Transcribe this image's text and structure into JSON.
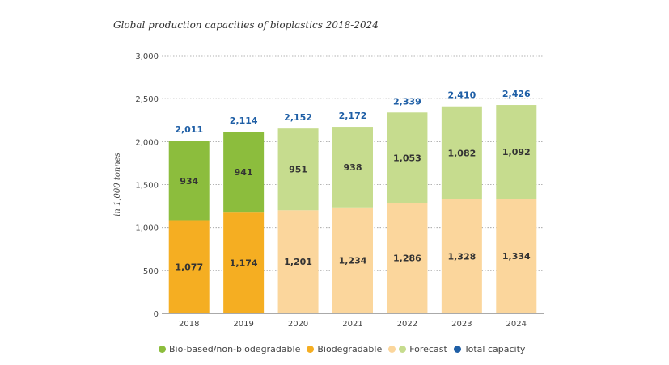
{
  "chart_data": {
    "type": "bar",
    "stacked": true,
    "title": "Global production capacities of bioplastics 2018-2024",
    "ylabel": "in 1,000 tonnes",
    "xlabel": "",
    "ylim": [
      0,
      3000
    ],
    "yticks": [
      0,
      500,
      1000,
      1500,
      2000,
      2500,
      3000
    ],
    "ytick_labels": [
      "0",
      "500",
      "1,000",
      "1,500",
      "2,000",
      "2,500",
      "3,000"
    ],
    "grid": true,
    "categories": [
      "2018",
      "2019",
      "2020",
      "2021",
      "2022",
      "2023",
      "2024"
    ],
    "forecast_from_index": 2,
    "series": [
      {
        "name": "Biodegradable",
        "values": [
          1077,
          1174,
          1201,
          1234,
          1286,
          1328,
          1334
        ],
        "labels": [
          "1,077",
          "1,174",
          "1,201",
          "1,234",
          "1,286",
          "1,328",
          "1,334"
        ],
        "color": "#F5AE22",
        "forecast_color": "#FBD69C"
      },
      {
        "name": "Bio-based/non-biodegradable",
        "values": [
          934,
          941,
          951,
          938,
          1053,
          1082,
          1092
        ],
        "labels": [
          "934",
          "941",
          "951",
          "938",
          "1,053",
          "1,082",
          "1,092"
        ],
        "color": "#8CBD3D",
        "forecast_color": "#C6DC8E"
      }
    ],
    "totals": [
      2011,
      2114,
      2152,
      2172,
      2339,
      2410,
      2426
    ],
    "total_labels": [
      "2,011",
      "2,114",
      "2,152",
      "2,172",
      "2,339",
      "2,410",
      "2,426"
    ],
    "total_color": "#1F5FA6",
    "legend": [
      {
        "label": "Bio-based/non-biodegradable",
        "color": "#8CBD3D"
      },
      {
        "label": "Biodegradable",
        "color": "#F5AE22"
      },
      {
        "label": "Forecast",
        "color": "#FBD69C",
        "color2": "#C6DC8E"
      },
      {
        "label": "Total capacity",
        "color": "#1F5FA6"
      }
    ],
    "legend_position": "bottom"
  }
}
